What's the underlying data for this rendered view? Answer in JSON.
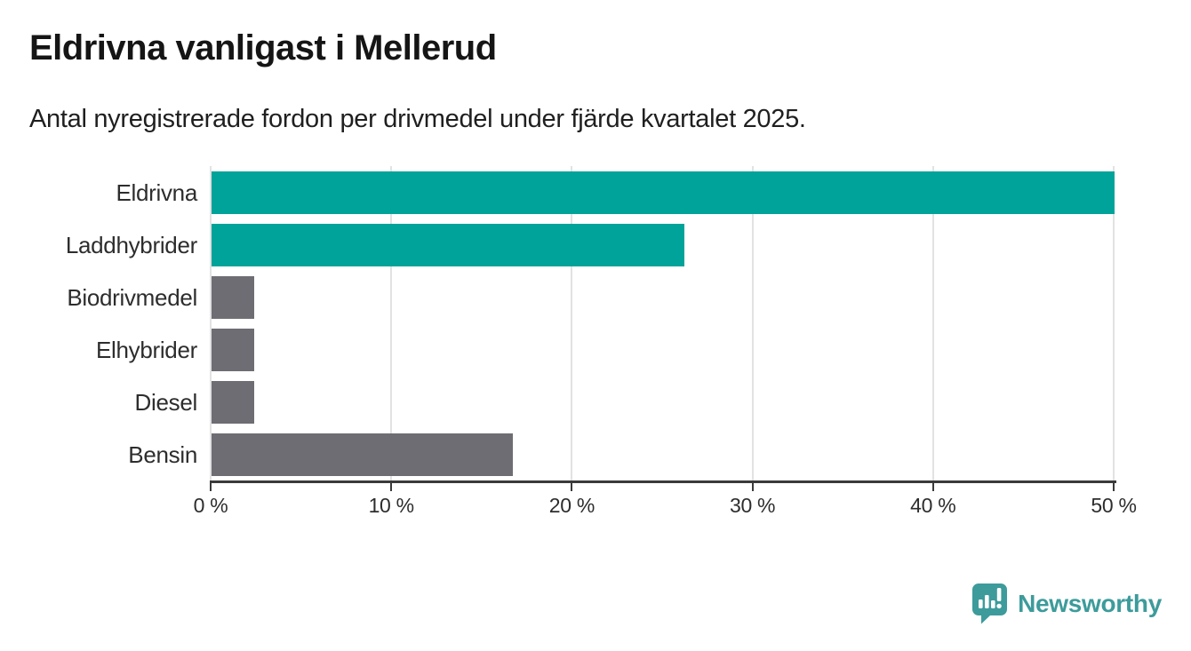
{
  "header": {
    "title": "Eldrivna vanligast i Mellerud",
    "subtitle": "Antal nyregistrerade fordon per drivmedel under fjärde kvartalet 2025."
  },
  "chart_data": {
    "type": "bar",
    "orientation": "horizontal",
    "title": "Eldrivna vanligast i Mellerud",
    "subtitle": "Antal nyregistrerade fordon per drivmedel under fjärde kvartalet 2025.",
    "categories": [
      "Eldrivna",
      "Laddhybrider",
      "Biodrivmedel",
      "Elhybrider",
      "Diesel",
      "Bensin"
    ],
    "values": [
      50,
      26.19,
      2.38,
      2.38,
      2.38,
      16.67
    ],
    "unit": "%",
    "bar_colors": [
      "#00a399",
      "#00a399",
      "#6e6d73",
      "#6e6d73",
      "#6e6d73",
      "#6e6d73"
    ],
    "highlight_color": "#00a399",
    "default_color": "#6e6d73",
    "xlabel": "",
    "ylabel": "",
    "xlim": [
      0,
      50
    ],
    "xticks": [
      {
        "value": 0,
        "label": "0 %"
      },
      {
        "value": 10,
        "label": "10 %"
      },
      {
        "value": 20,
        "label": "20 %"
      },
      {
        "value": 30,
        "label": "30 %"
      },
      {
        "value": 40,
        "label": "40 %"
      },
      {
        "value": 50,
        "label": "50 %"
      }
    ],
    "grid": true,
    "gridline_color": "#e2e2e2",
    "axis_color": "#3a3a3a",
    "legend": "none"
  },
  "branding": {
    "logo_text": "Newsworthy",
    "logo_color": "#3d9b9b",
    "logo_icon": "newsworthy-pin-bar-chart-icon"
  }
}
